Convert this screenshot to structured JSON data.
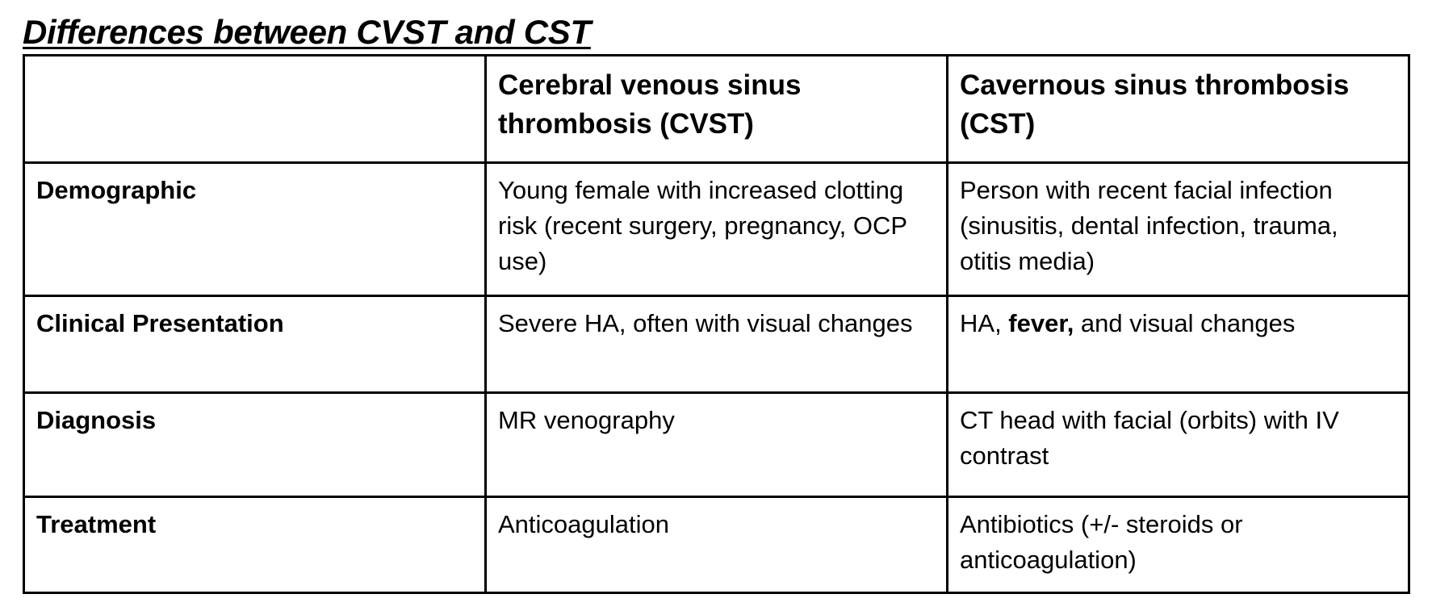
{
  "title": "Differences between CVST and CST",
  "table": {
    "columns": [
      "",
      "Cerebral venous sinus thrombosis (CVST)",
      "Cavernous sinus thrombosis (CST)"
    ],
    "rows": [
      {
        "label": "Demographic",
        "cvst": "Young female with increased clotting risk (recent surgery, pregnancy, OCP use)",
        "cst": "Person with recent facial infection (sinusitis, dental infection, trauma, otitis media)"
      },
      {
        "label": "Clinical Presentation",
        "cvst": "Severe HA, often with visual changes",
        "cst_parts": {
          "before": "HA, ",
          "bold": "fever,",
          "after": " and visual changes"
        }
      },
      {
        "label": "Diagnosis",
        "cvst": "MR venography",
        "cst": "CT head with facial (orbits) with IV contrast"
      },
      {
        "label": "Treatment",
        "cvst": "Anticoagulation",
        "cst": "Antibiotics (+/- steroids or anticoagulation)"
      }
    ]
  },
  "colors": {
    "text": "#000000",
    "border": "#000000",
    "background": "#ffffff"
  }
}
